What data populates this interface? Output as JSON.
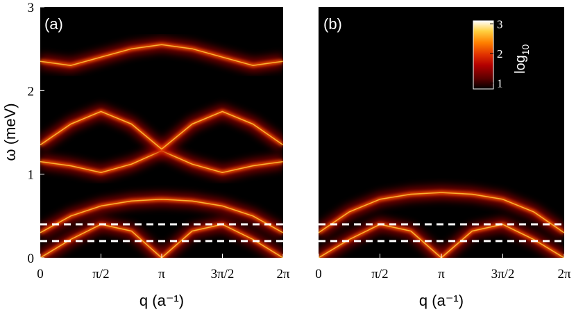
{
  "chart_data": [
    {
      "type": "heatmap",
      "panel_label": "(a)",
      "xlabel": "q (a⁻¹)",
      "ylabel": "ω (meV)",
      "xlim": [
        0,
        6.2832
      ],
      "ylim": [
        0,
        3
      ],
      "x_ticks": [
        {
          "value": 0,
          "label": "0"
        },
        {
          "value": 1.5708,
          "label": "π/2"
        },
        {
          "value": 3.1416,
          "label": "π"
        },
        {
          "value": 4.7124,
          "label": "3π/2"
        },
        {
          "value": 6.2832,
          "label": "2π"
        }
      ],
      "y_ticks": [
        {
          "value": 0,
          "label": "0"
        },
        {
          "value": 1,
          "label": "1"
        },
        {
          "value": 2,
          "label": "2"
        },
        {
          "value": 3,
          "label": "3"
        }
      ],
      "dashed_lines_y": [
        0.4,
        0.2
      ],
      "dispersion_bands": [
        {
          "q": [
            0,
            0.79,
            1.57,
            2.36,
            3.14,
            3.93,
            4.71,
            5.5,
            6.28
          ],
          "omega": [
            0,
            0.22,
            0.4,
            0.32,
            0,
            0.32,
            0.4,
            0.22,
            0
          ]
        },
        {
          "q": [
            0,
            0.79,
            1.57,
            2.36,
            3.14,
            3.93,
            4.71,
            5.5,
            6.28
          ],
          "omega": [
            0.3,
            0.5,
            0.62,
            0.68,
            0.7,
            0.68,
            0.62,
            0.5,
            0.3
          ]
        },
        {
          "q": [
            0,
            0.79,
            1.57,
            2.36,
            3.14,
            3.93,
            4.71,
            5.5,
            6.28
          ],
          "omega": [
            1.15,
            1.1,
            1.02,
            1.12,
            1.28,
            1.12,
            1.02,
            1.1,
            1.15
          ]
        },
        {
          "q": [
            0,
            0.79,
            1.57,
            2.36,
            3.14,
            3.93,
            4.71,
            5.5,
            6.28
          ],
          "omega": [
            1.35,
            1.6,
            1.75,
            1.6,
            1.3,
            1.6,
            1.75,
            1.6,
            1.35
          ]
        },
        {
          "q": [
            0,
            0.79,
            1.57,
            2.36,
            3.14,
            3.93,
            4.71,
            5.5,
            6.28
          ],
          "omega": [
            2.35,
            2.3,
            2.4,
            2.5,
            2.55,
            2.5,
            2.4,
            2.3,
            2.35
          ]
        }
      ]
    },
    {
      "type": "heatmap",
      "panel_label": "(b)",
      "xlabel": "q (a⁻¹)",
      "xlim": [
        0,
        6.2832
      ],
      "ylim": [
        0,
        3
      ],
      "x_ticks": [
        {
          "value": 0,
          "label": "0"
        },
        {
          "value": 1.5708,
          "label": "π/2"
        },
        {
          "value": 3.1416,
          "label": "π"
        },
        {
          "value": 4.7124,
          "label": "3π/2"
        },
        {
          "value": 6.2832,
          "label": "2π"
        }
      ],
      "dashed_lines_y": [
        0.4,
        0.2
      ],
      "dispersion_bands": [
        {
          "q": [
            0,
            0.79,
            1.57,
            2.36,
            3.14,
            3.93,
            4.71,
            5.5,
            6.28
          ],
          "omega": [
            0,
            0.22,
            0.4,
            0.32,
            0,
            0.32,
            0.4,
            0.22,
            0
          ]
        },
        {
          "q": [
            0,
            0.79,
            1.57,
            2.36,
            3.14,
            3.93,
            4.71,
            5.5,
            6.28
          ],
          "omega": [
            0.3,
            0.55,
            0.7,
            0.76,
            0.78,
            0.76,
            0.7,
            0.55,
            0.3
          ]
        }
      ],
      "colorbar": {
        "label": "log",
        "label_subscript": "10",
        "range": [
          0.8,
          3.1
        ],
        "ticks": [
          {
            "value": 3,
            "label": "3"
          },
          {
            "value": 2,
            "label": "2"
          },
          {
            "value": 1,
            "label": "1"
          }
        ],
        "colormap": [
          "#000000",
          "#5a0000",
          "#b30000",
          "#e03000",
          "#ff8000",
          "#ffd040",
          "#ffffff"
        ]
      }
    }
  ]
}
